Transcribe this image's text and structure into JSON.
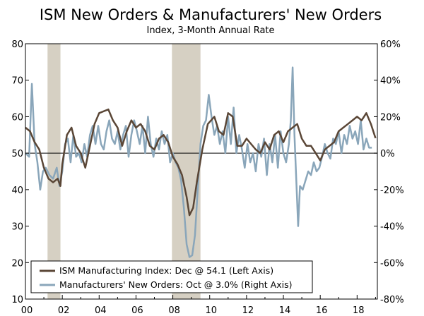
{
  "chart_data": {
    "type": "line",
    "title": "ISM New Orders & Manufacturers' New Orders",
    "subtitle": "Index, 3-Month Annual Rate",
    "xlabel": "",
    "ylabel_left": "",
    "ylabel_right": "",
    "xlim": [
      2000,
      2019.1
    ],
    "ylim_left": [
      10,
      80
    ],
    "ylim_right": [
      -80,
      60
    ],
    "x_ticks": [
      2000,
      2002,
      2004,
      2006,
      2008,
      2010,
      2012,
      2014,
      2016,
      2018
    ],
    "x_tick_labels": [
      "00",
      "02",
      "04",
      "06",
      "08",
      "10",
      "12",
      "14",
      "16",
      "18"
    ],
    "y_left_ticks": [
      10,
      20,
      30,
      40,
      50,
      60,
      70,
      80
    ],
    "y_left_tick_labels": [
      "10",
      "20",
      "30",
      "40",
      "50",
      "60",
      "70",
      "80"
    ],
    "y_right_ticks": [
      -80,
      -60,
      -40,
      -20,
      0,
      20,
      40,
      60
    ],
    "y_right_tick_labels": [
      "-80%",
      "-60%",
      "-40%",
      "-20%",
      "0%",
      "20%",
      "40%",
      "60%"
    ],
    "reference_line_right": 0,
    "recessions": [
      [
        2001.2,
        2001.9
      ],
      [
        2007.95,
        2009.5
      ]
    ],
    "legend_position": "bottom-left",
    "series": [
      {
        "name": "ISM Manufacturing Index: Dec @ 54.1 (Left Axis)",
        "axis": "left",
        "color": "#5a4636",
        "points": [
          [
            2000,
            57
          ],
          [
            2000.25,
            56
          ],
          [
            2000.5,
            53
          ],
          [
            2000.75,
            51
          ],
          [
            2001,
            46
          ],
          [
            2001.25,
            43
          ],
          [
            2001.5,
            42
          ],
          [
            2001.75,
            43
          ],
          [
            2001.9,
            41
          ],
          [
            2002,
            47
          ],
          [
            2002.25,
            55
          ],
          [
            2002.5,
            57
          ],
          [
            2002.75,
            52
          ],
          [
            2003,
            50
          ],
          [
            2003.25,
            46
          ],
          [
            2003.5,
            52
          ],
          [
            2003.75,
            58
          ],
          [
            2004,
            61
          ],
          [
            2004.5,
            62
          ],
          [
            2004.75,
            59
          ],
          [
            2005,
            57
          ],
          [
            2005.25,
            52
          ],
          [
            2005.5,
            56
          ],
          [
            2005.75,
            59
          ],
          [
            2006,
            57
          ],
          [
            2006.25,
            58
          ],
          [
            2006.5,
            56
          ],
          [
            2006.75,
            52
          ],
          [
            2007,
            51
          ],
          [
            2007.25,
            54
          ],
          [
            2007.5,
            55
          ],
          [
            2007.75,
            53
          ],
          [
            2008,
            49
          ],
          [
            2008.25,
            47
          ],
          [
            2008.5,
            44
          ],
          [
            2008.75,
            38
          ],
          [
            2008.9,
            33
          ],
          [
            2009.1,
            35
          ],
          [
            2009.3,
            42
          ],
          [
            2009.6,
            51
          ],
          [
            2009.9,
            58
          ],
          [
            2010.25,
            60
          ],
          [
            2010.5,
            56
          ],
          [
            2010.75,
            55
          ],
          [
            2011,
            61
          ],
          [
            2011.25,
            60
          ],
          [
            2011.5,
            52
          ],
          [
            2011.75,
            52
          ],
          [
            2012,
            54
          ],
          [
            2012.5,
            51
          ],
          [
            2012.75,
            50
          ],
          [
            2013,
            53
          ],
          [
            2013.25,
            51
          ],
          [
            2013.5,
            55
          ],
          [
            2013.75,
            56
          ],
          [
            2014,
            53
          ],
          [
            2014.25,
            56
          ],
          [
            2014.5,
            57
          ],
          [
            2014.75,
            58
          ],
          [
            2015,
            54
          ],
          [
            2015.25,
            52
          ],
          [
            2015.5,
            52
          ],
          [
            2015.75,
            50
          ],
          [
            2016,
            48
          ],
          [
            2016.25,
            51
          ],
          [
            2016.5,
            52
          ],
          [
            2016.75,
            53
          ],
          [
            2017,
            56
          ],
          [
            2017.25,
            57
          ],
          [
            2017.5,
            58
          ],
          [
            2017.75,
            59
          ],
          [
            2018,
            60
          ],
          [
            2018.25,
            59
          ],
          [
            2018.5,
            61
          ],
          [
            2018.75,
            58
          ],
          [
            2019,
            54.1
          ]
        ]
      },
      {
        "name": "Manufacturers' New Orders: Oct @ 3.0% (Right Axis)",
        "axis": "right",
        "color": "#8aa6ba",
        "points": [
          [
            2000,
            0
          ],
          [
            2000.2,
            -2
          ],
          [
            2000.35,
            38
          ],
          [
            2000.5,
            5
          ],
          [
            2000.65,
            -5
          ],
          [
            2000.8,
            -20
          ],
          [
            2000.95,
            -10
          ],
          [
            2001.1,
            -8
          ],
          [
            2001.3,
            -12
          ],
          [
            2001.5,
            -14
          ],
          [
            2001.7,
            -8
          ],
          [
            2001.85,
            -18
          ],
          [
            2002,
            -10
          ],
          [
            2002.15,
            5
          ],
          [
            2002.3,
            8
          ],
          [
            2002.45,
            -5
          ],
          [
            2002.6,
            10
          ],
          [
            2002.75,
            -2
          ],
          [
            2002.9,
            0
          ],
          [
            2003.05,
            -5
          ],
          [
            2003.2,
            5
          ],
          [
            2003.35,
            -2
          ],
          [
            2003.5,
            10
          ],
          [
            2003.65,
            15
          ],
          [
            2003.8,
            5
          ],
          [
            2003.95,
            15
          ],
          [
            2004.1,
            5
          ],
          [
            2004.25,
            2
          ],
          [
            2004.4,
            12
          ],
          [
            2004.55,
            18
          ],
          [
            2004.7,
            8
          ],
          [
            2004.85,
            5
          ],
          [
            2005,
            12
          ],
          [
            2005.15,
            2
          ],
          [
            2005.3,
            10
          ],
          [
            2005.45,
            15
          ],
          [
            2005.6,
            -2
          ],
          [
            2005.75,
            10
          ],
          [
            2005.9,
            18
          ],
          [
            2006.05,
            12
          ],
          [
            2006.2,
            5
          ],
          [
            2006.35,
            15
          ],
          [
            2006.5,
            0
          ],
          [
            2006.65,
            20
          ],
          [
            2006.8,
            5
          ],
          [
            2006.95,
            -2
          ],
          [
            2007.1,
            8
          ],
          [
            2007.25,
            2
          ],
          [
            2007.4,
            12
          ],
          [
            2007.55,
            5
          ],
          [
            2007.7,
            10
          ],
          [
            2007.85,
            -5
          ],
          [
            2008,
            0
          ],
          [
            2008.15,
            -5
          ],
          [
            2008.3,
            -8
          ],
          [
            2008.45,
            -15
          ],
          [
            2008.6,
            -30
          ],
          [
            2008.75,
            -50
          ],
          [
            2008.9,
            -57
          ],
          [
            2009.05,
            -56
          ],
          [
            2009.2,
            -45
          ],
          [
            2009.35,
            -20
          ],
          [
            2009.5,
            5
          ],
          [
            2009.65,
            15
          ],
          [
            2009.8,
            18
          ],
          [
            2009.95,
            32
          ],
          [
            2010.1,
            20
          ],
          [
            2010.25,
            10
          ],
          [
            2010.4,
            15
          ],
          [
            2010.55,
            5
          ],
          [
            2010.7,
            12
          ],
          [
            2010.85,
            0
          ],
          [
            2011,
            20
          ],
          [
            2011.15,
            5
          ],
          [
            2011.3,
            25
          ],
          [
            2011.45,
            0
          ],
          [
            2011.6,
            10
          ],
          [
            2011.75,
            2
          ],
          [
            2011.9,
            -8
          ],
          [
            2012.05,
            5
          ],
          [
            2012.2,
            -5
          ],
          [
            2012.35,
            0
          ],
          [
            2012.5,
            -10
          ],
          [
            2012.65,
            5
          ],
          [
            2012.8,
            -2
          ],
          [
            2012.95,
            8
          ],
          [
            2013.1,
            -12
          ],
          [
            2013.25,
            5
          ],
          [
            2013.4,
            -5
          ],
          [
            2013.55,
            10
          ],
          [
            2013.7,
            -8
          ],
          [
            2013.85,
            12
          ],
          [
            2014,
            0
          ],
          [
            2014.15,
            -5
          ],
          [
            2014.3,
            5
          ],
          [
            2014.4,
            18
          ],
          [
            2014.5,
            47
          ],
          [
            2014.6,
            10
          ],
          [
            2014.7,
            -15
          ],
          [
            2014.8,
            -40
          ],
          [
            2014.9,
            -18
          ],
          [
            2015.05,
            -20
          ],
          [
            2015.2,
            -15
          ],
          [
            2015.35,
            -10
          ],
          [
            2015.5,
            -12
          ],
          [
            2015.65,
            -5
          ],
          [
            2015.8,
            -10
          ],
          [
            2015.95,
            -8
          ],
          [
            2016.1,
            -2
          ],
          [
            2016.25,
            5
          ],
          [
            2016.4,
            0
          ],
          [
            2016.55,
            -3
          ],
          [
            2016.7,
            8
          ],
          [
            2016.85,
            5
          ],
          [
            2017,
            12
          ],
          [
            2017.15,
            0
          ],
          [
            2017.3,
            10
          ],
          [
            2017.45,
            5
          ],
          [
            2017.6,
            15
          ],
          [
            2017.75,
            8
          ],
          [
            2017.9,
            12
          ],
          [
            2018.05,
            5
          ],
          [
            2018.2,
            18
          ],
          [
            2018.35,
            2
          ],
          [
            2018.5,
            8
          ],
          [
            2018.65,
            3
          ],
          [
            2018.8,
            3
          ]
        ]
      }
    ]
  }
}
